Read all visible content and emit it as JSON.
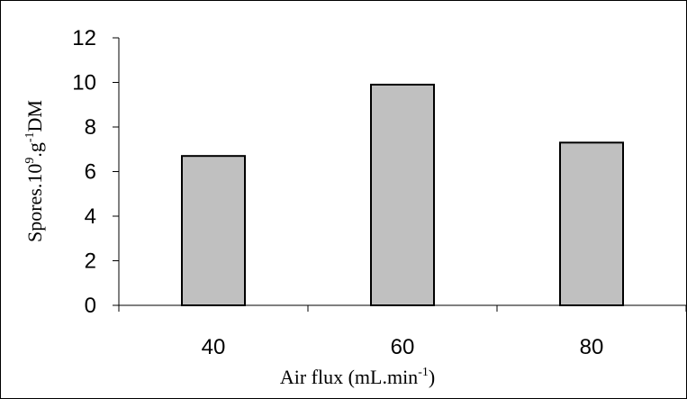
{
  "chart_data": {
    "type": "bar",
    "title": "",
    "categories": [
      "40",
      "60",
      "80"
    ],
    "values": [
      6.7,
      9.9,
      7.3
    ],
    "ylim": [
      0,
      12
    ],
    "yticks": [
      "0",
      "2",
      "4",
      "6",
      "8",
      "10",
      "12"
    ],
    "ytick_values": [
      0,
      2,
      4,
      6,
      8,
      10,
      12
    ],
    "xlabel": {
      "main": "Air flux (mL.min",
      "sup": "-1",
      "tail": ")"
    },
    "ylabel": {
      "part1": "Spores.10",
      "sup1": "9",
      "part2": ".g",
      "sup2": "-1",
      "part3": "DM"
    },
    "grid": false,
    "legend": "none",
    "colors": {
      "bar_fill": "#c0c0c0",
      "bar_stroke": "#000000",
      "axis": "#000000",
      "frame": "#000000"
    }
  }
}
